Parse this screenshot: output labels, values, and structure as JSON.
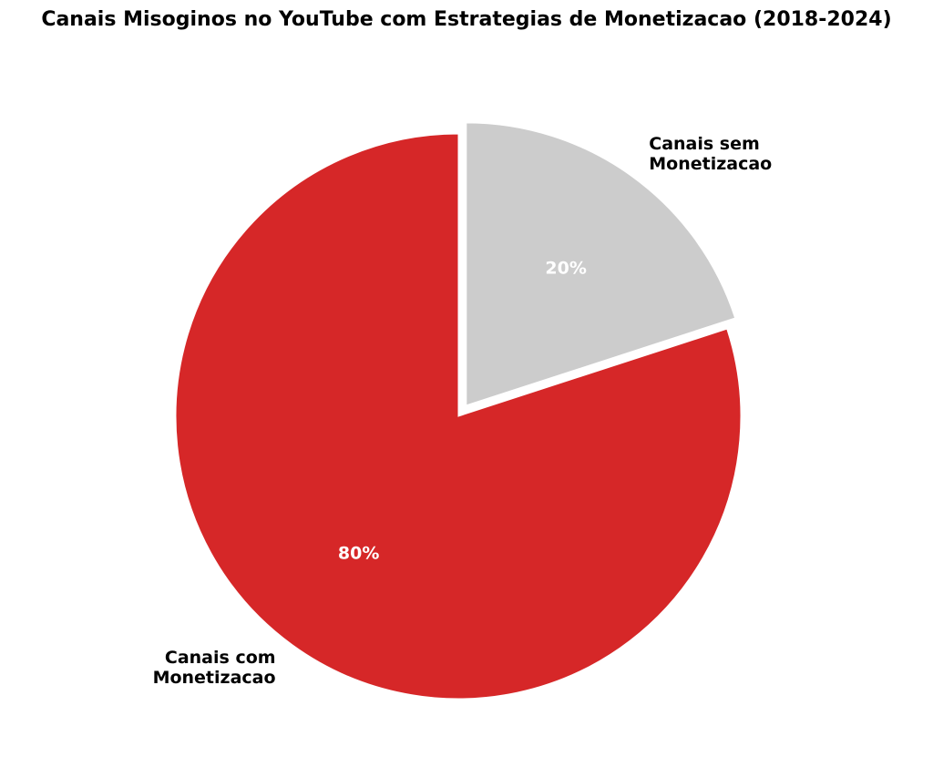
{
  "chart_data": {
    "type": "pie",
    "title": "Canais Misoginos no YouTube com Estrategias de Monetizacao (2018-2024)",
    "categories": [
      "Canais sem Monetizacao",
      "Canais com Monetizacao"
    ],
    "label_lines": [
      [
        "Canais sem",
        "Monetizacao"
      ],
      [
        "Canais com",
        "Monetizacao"
      ]
    ],
    "values": [
      20,
      80
    ],
    "value_labels": [
      "20%",
      "80%"
    ],
    "colors": [
      "#cccccc",
      "#d62728"
    ],
    "explode": [
      1,
      0
    ],
    "start_angle_deg": 90,
    "direction": "clockwise",
    "legend": "none"
  }
}
